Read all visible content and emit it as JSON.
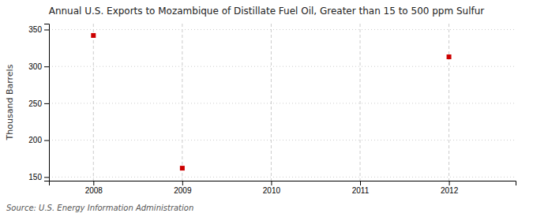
{
  "chart_data": {
    "type": "scatter",
    "title": "Annual U.S. Exports to Mozambique of Distillate Fuel Oil, Greater than 15 to 500 ppm Sulfur",
    "ylabel": "Thousand Barrels",
    "source": "Source: U.S. Energy Information Administration",
    "x": [
      2008,
      2009,
      2012
    ],
    "values": [
      342,
      162,
      313
    ],
    "xlim": [
      2007.5,
      2012.75
    ],
    "ylim": [
      145,
      358
    ],
    "xticks": [
      2008,
      2009,
      2010,
      2011,
      2012
    ],
    "yticks": [
      150,
      200,
      250,
      300,
      350
    ],
    "color": "#cc0000",
    "marker": "square",
    "grid": true
  }
}
